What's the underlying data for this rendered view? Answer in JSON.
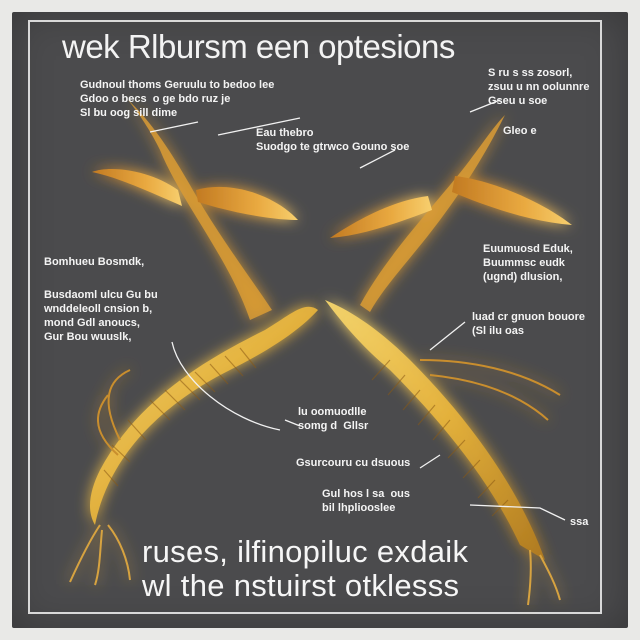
{
  "title": "wek Rlbursm een optesions",
  "caption": "ruses, ilfinopiluc exdaik\nwl the nstuirst otklesss",
  "annotations": [
    {
      "id": "top-left",
      "text": "Gudnoul thoms Geruulu to bedoo lee\nGdoo o becs  o ge bdo ruz je\nSl bu oog sill dime"
    },
    {
      "id": "top-mid",
      "text": "Eau thebro\nSuodgo te gtrwco Gouno soe"
    },
    {
      "id": "top-right",
      "text": "S ru s ss zosorl,\nzsuu u nn oolunnre\nGseu u soe"
    },
    {
      "id": "right-small",
      "text": "Gleo e"
    },
    {
      "id": "left-1",
      "text": "Bomhueu Bosmdk,"
    },
    {
      "id": "left-2",
      "text": "Busdaoml ulcu Gu bu\nwnddeleoll cnsion b,\nmond Gdl anoucs,\nGur Bou wuuslk,"
    },
    {
      "id": "right-1",
      "text": "Euumuosd Eduk,\nBuummsc eudk\n(ugnd) dlusion,"
    },
    {
      "id": "right-2",
      "text": "luad cr gnuon bouore\n(Sl ilu oas"
    },
    {
      "id": "center-1",
      "text": "lu oomuodlle\nsomg d  Gllsr"
    },
    {
      "id": "center-2",
      "text": "Gsurcouru cu dsuous"
    },
    {
      "id": "center-3",
      "text": "Gul hos l sa  ous\nbil lhpliooslee"
    },
    {
      "id": "right-3",
      "text": "ssa"
    }
  ],
  "colors": {
    "panel": "#4b4b4d",
    "glow": "#ffd24a",
    "creature": "#e8b642",
    "creature_dark": "#9a6416",
    "text": "#f4f4f4"
  }
}
